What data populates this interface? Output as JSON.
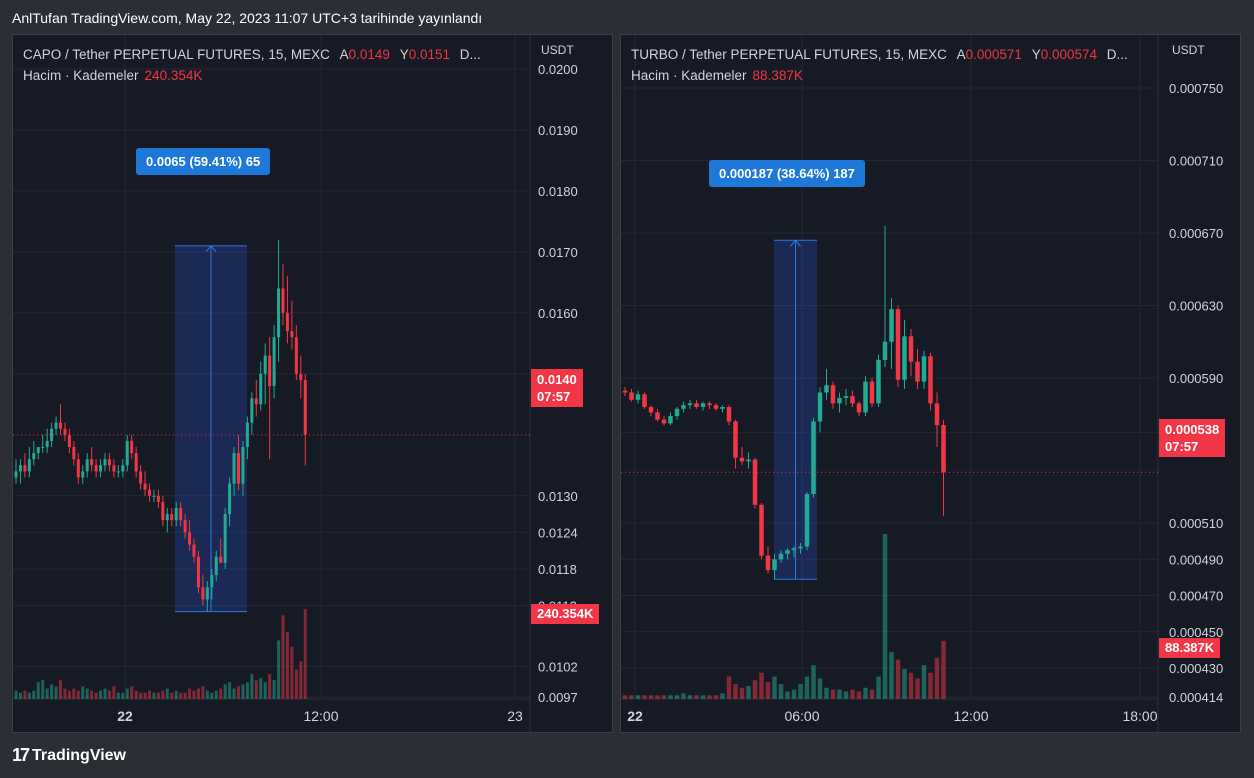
{
  "header": {
    "title": "AnlTufan TradingView.com, May 22, 2023 11:07 UTC+3 tarihinde yayınlandı"
  },
  "footer": {
    "brand": "TradingView",
    "logo": "tradingview-logo-icon"
  },
  "colors": {
    "up": "#22ab94",
    "down": "#f23645",
    "measure": "#1e78d7",
    "background": "#161a25"
  },
  "left": {
    "symbol": "CAPO / Tether PERPETUAL FUTURES, 15, MEXC",
    "open_label": "A",
    "open_value": "0.0149",
    "high_label": "Y",
    "high_value": "0.0151",
    "more": "D...",
    "volume_label": "Hacim · Kademeler",
    "volume_value": "240.354K",
    "currency": "USDT",
    "measure_text": "0.0065 (59.41%) 65",
    "last_price": "0.0140",
    "countdown": "07:57",
    "volume_tag": "240.354K",
    "price_ticks": [
      "0.0200",
      "0.0190",
      "0.0180",
      "0.0170",
      "0.0160",
      "0.0150",
      "0.0130",
      "0.0124",
      "0.0118",
      "0.0112",
      "0.0102",
      "0.0097"
    ],
    "time_ticks": [
      "22",
      "12:00",
      "23"
    ]
  },
  "right": {
    "symbol": "TURBO / Tether PERPETUAL FUTURES, 15, MEXC",
    "open_label": "A",
    "open_value": "0.000571",
    "high_label": "Y",
    "high_value": "0.000574",
    "more": "D...",
    "volume_label": "Hacim · Kademeler",
    "volume_value": "88.387K",
    "currency": "USDT",
    "measure_text": "0.000187 (38.64%) 187",
    "last_price": "0.000538",
    "countdown": "07:57",
    "volume_tag": "88.387K",
    "price_ticks": [
      "0.000750",
      "0.000710",
      "0.000670",
      "0.000630",
      "0.000590",
      "0.000560",
      "0.000510",
      "0.000490",
      "0.000470",
      "0.000450",
      "0.000430",
      "0.000414"
    ],
    "time_ticks": [
      "22",
      "06:00",
      "12:00",
      "18:00"
    ]
  },
  "chart_data": [
    {
      "type": "candlestick",
      "title": "CAPO / Tether PERPETUAL FUTURES, 15, MEXC",
      "ylabel": "USDT",
      "ylim": [
        0.0097,
        0.02
      ],
      "x_ticks": [
        "22",
        "12:00",
        "23"
      ],
      "candles": [
        [
          0.0133,
          0.0136,
          0.0132,
          0.0134
        ],
        [
          0.0134,
          0.0136,
          0.0132,
          0.0135
        ],
        [
          0.0135,
          0.0137,
          0.0133,
          0.0134
        ],
        [
          0.0134,
          0.0138,
          0.0133,
          0.0136
        ],
        [
          0.0136,
          0.0139,
          0.0135,
          0.0137
        ],
        [
          0.0137,
          0.0138,
          0.0136,
          0.0138
        ],
        [
          0.0138,
          0.014,
          0.0137,
          0.0138
        ],
        [
          0.0138,
          0.0141,
          0.0137,
          0.0139
        ],
        [
          0.0139,
          0.0142,
          0.0138,
          0.0141
        ],
        [
          0.0141,
          0.0143,
          0.014,
          0.0142
        ],
        [
          0.0142,
          0.0145,
          0.014,
          0.0141
        ],
        [
          0.0141,
          0.0142,
          0.0139,
          0.014
        ],
        [
          0.014,
          0.0141,
          0.0137,
          0.0138
        ],
        [
          0.0138,
          0.0139,
          0.0135,
          0.0136
        ],
        [
          0.0136,
          0.0137,
          0.0132,
          0.0133
        ],
        [
          0.0133,
          0.0135,
          0.0132,
          0.0134
        ],
        [
          0.0134,
          0.0137,
          0.0133,
          0.0136
        ],
        [
          0.0136,
          0.0138,
          0.0134,
          0.0135
        ],
        [
          0.0135,
          0.0136,
          0.0133,
          0.0134
        ],
        [
          0.0134,
          0.0136,
          0.0133,
          0.0135
        ],
        [
          0.0135,
          0.0137,
          0.0134,
          0.0136
        ],
        [
          0.0136,
          0.0137,
          0.0134,
          0.0135
        ],
        [
          0.0135,
          0.0136,
          0.0133,
          0.0134
        ],
        [
          0.0134,
          0.0135,
          0.0133,
          0.0134
        ],
        [
          0.0134,
          0.0136,
          0.0133,
          0.0135
        ],
        [
          0.0135,
          0.014,
          0.0134,
          0.0139
        ],
        [
          0.0139,
          0.014,
          0.0136,
          0.0137
        ],
        [
          0.0137,
          0.0138,
          0.0133,
          0.0134
        ],
        [
          0.0134,
          0.0135,
          0.0131,
          0.0132
        ],
        [
          0.0132,
          0.0134,
          0.013,
          0.0131
        ],
        [
          0.0131,
          0.0132,
          0.0129,
          0.013
        ],
        [
          0.013,
          0.0131,
          0.0129,
          0.013
        ],
        [
          0.013,
          0.0131,
          0.0128,
          0.0129
        ],
        [
          0.0129,
          0.013,
          0.0125,
          0.0126
        ],
        [
          0.0126,
          0.0128,
          0.0124,
          0.0127
        ],
        [
          0.0127,
          0.0128,
          0.0125,
          0.0126
        ],
        [
          0.0126,
          0.0129,
          0.0125,
          0.0128
        ],
        [
          0.0128,
          0.0129,
          0.0125,
          0.0126
        ],
        [
          0.0126,
          0.0127,
          0.0123,
          0.0124
        ],
        [
          0.0124,
          0.0126,
          0.0121,
          0.0122
        ],
        [
          0.0122,
          0.0123,
          0.0119,
          0.012
        ],
        [
          0.012,
          0.0121,
          0.0114,
          0.0115
        ],
        [
          0.0115,
          0.0117,
          0.0112,
          0.0113
        ],
        [
          0.0113,
          0.0116,
          0.0111,
          0.0115
        ],
        [
          0.0115,
          0.0118,
          0.0113,
          0.0117
        ],
        [
          0.0117,
          0.0121,
          0.0116,
          0.012
        ],
        [
          0.012,
          0.0123,
          0.0119,
          0.0119
        ],
        [
          0.0119,
          0.0128,
          0.0118,
          0.0127
        ],
        [
          0.0127,
          0.0133,
          0.0125,
          0.0132
        ],
        [
          0.0132,
          0.0138,
          0.013,
          0.0137
        ],
        [
          0.0137,
          0.014,
          0.0131,
          0.0132
        ],
        [
          0.0132,
          0.0139,
          0.013,
          0.0138
        ],
        [
          0.0138,
          0.0143,
          0.0136,
          0.0142
        ],
        [
          0.0142,
          0.0147,
          0.014,
          0.0146
        ],
        [
          0.0146,
          0.0149,
          0.0143,
          0.0145
        ],
        [
          0.0145,
          0.0152,
          0.0144,
          0.015
        ],
        [
          0.015,
          0.0155,
          0.0145,
          0.0153
        ],
        [
          0.0153,
          0.0156,
          0.0136,
          0.0148
        ],
        [
          0.0148,
          0.0158,
          0.0146,
          0.0156
        ],
        [
          0.0156,
          0.0172,
          0.0152,
          0.0164
        ],
        [
          0.0164,
          0.0168,
          0.0158,
          0.016
        ],
        [
          0.016,
          0.0166,
          0.0155,
          0.0157
        ],
        [
          0.0157,
          0.0162,
          0.0154,
          0.0156
        ],
        [
          0.0156,
          0.0158,
          0.0149,
          0.015
        ],
        [
          0.015,
          0.0153,
          0.0146,
          0.0149
        ],
        [
          0.0149,
          0.015,
          0.0135,
          0.014
        ]
      ],
      "volume": [
        4,
        3,
        4,
        3,
        4,
        8,
        9,
        5,
        7,
        6,
        9,
        5,
        4,
        5,
        4,
        6,
        5,
        4,
        3,
        4,
        5,
        4,
        6,
        3,
        3,
        5,
        6,
        4,
        3,
        3,
        4,
        3,
        3,
        4,
        5,
        3,
        4,
        3,
        3,
        5,
        4,
        5,
        6,
        4,
        3,
        4,
        5,
        7,
        8,
        5,
        6,
        7,
        8,
        12,
        9,
        10,
        8,
        12,
        9,
        28,
        40,
        32,
        25,
        14,
        18,
        43
      ]
    },
    {
      "type": "candlestick",
      "title": "TURBO / Tether PERPETUAL FUTURES, 15, MEXC",
      "ylabel": "USDT",
      "ylim": [
        0.000414,
        0.00075
      ],
      "x_ticks": [
        "22",
        "06:00",
        "12:00",
        "18:00"
      ],
      "candles": [
        [
          0.000583,
          0.000585,
          0.00058,
          0.000582
        ],
        [
          0.000582,
          0.000584,
          0.000577,
          0.000578
        ],
        [
          0.000578,
          0.000583,
          0.000576,
          0.000581
        ],
        [
          0.000581,
          0.000582,
          0.000573,
          0.000574
        ],
        [
          0.000574,
          0.000575,
          0.000569,
          0.000571
        ],
        [
          0.000571,
          0.000573,
          0.000566,
          0.000567
        ],
        [
          0.000567,
          0.000569,
          0.000564,
          0.000565
        ],
        [
          0.000565,
          0.000571,
          0.000564,
          0.000569
        ],
        [
          0.000569,
          0.000574,
          0.000567,
          0.000573
        ],
        [
          0.000573,
          0.000577,
          0.000571,
          0.000575
        ],
        [
          0.000575,
          0.000578,
          0.000573,
          0.000576
        ],
        [
          0.000576,
          0.000578,
          0.000573,
          0.000574
        ],
        [
          0.000574,
          0.000577,
          0.000572,
          0.000576
        ],
        [
          0.000576,
          0.000577,
          0.000573,
          0.000575
        ],
        [
          0.000575,
          0.000576,
          0.000572,
          0.000573
        ],
        [
          0.000573,
          0.000575,
          0.000571,
          0.000574
        ],
        [
          0.000574,
          0.000575,
          0.000564,
          0.000566
        ],
        [
          0.000566,
          0.000567,
          0.00054,
          0.000546
        ],
        [
          0.000546,
          0.000552,
          0.000542,
          0.000544
        ],
        [
          0.000544,
          0.000549,
          0.00054,
          0.000545
        ],
        [
          0.000545,
          0.000546,
          0.000518,
          0.00052
        ],
        [
          0.00052,
          0.000521,
          0.00049,
          0.000492
        ],
        [
          0.000492,
          0.000497,
          0.000482,
          0.000484
        ],
        [
          0.000484,
          0.000493,
          0.000479,
          0.00049
        ],
        [
          0.00049,
          0.000495,
          0.000488,
          0.000493
        ],
        [
          0.000493,
          0.000496,
          0.00049,
          0.000495
        ],
        [
          0.000495,
          0.000497,
          0.000491,
          0.000496
        ],
        [
          0.000496,
          0.000499,
          0.000493,
          0.000497
        ],
        [
          0.000497,
          0.000527,
          0.000495,
          0.000526
        ],
        [
          0.000526,
          0.000568,
          0.000524,
          0.000566
        ],
        [
          0.000566,
          0.000585,
          0.00056,
          0.000582
        ],
        [
          0.000582,
          0.000595,
          0.000578,
          0.000586
        ],
        [
          0.000586,
          0.000588,
          0.000573,
          0.000576
        ],
        [
          0.000576,
          0.000582,
          0.000571,
          0.000579
        ],
        [
          0.000579,
          0.000584,
          0.000575,
          0.00058
        ],
        [
          0.00058,
          0.000583,
          0.000574,
          0.000576
        ],
        [
          0.000576,
          0.000577,
          0.000569,
          0.000571
        ],
        [
          0.000571,
          0.000591,
          0.000569,
          0.000588
        ],
        [
          0.000588,
          0.00059,
          0.000574,
          0.000576
        ],
        [
          0.000576,
          0.000603,
          0.000574,
          0.0006
        ],
        [
          0.0006,
          0.000674,
          0.000596,
          0.00061
        ],
        [
          0.00061,
          0.000634,
          0.000595,
          0.000628
        ],
        [
          0.000628,
          0.00063,
          0.000585,
          0.000589
        ],
        [
          0.000589,
          0.000622,
          0.000584,
          0.000613
        ],
        [
          0.000613,
          0.000617,
          0.000591,
          0.000599
        ],
        [
          0.000599,
          0.000606,
          0.000584,
          0.000588
        ],
        [
          0.000588,
          0.000605,
          0.000584,
          0.000602
        ],
        [
          0.000602,
          0.000604,
          0.000572,
          0.000576
        ],
        [
          0.000576,
          0.000582,
          0.000552,
          0.000564
        ],
        [
          0.000564,
          0.000567,
          0.000514,
          0.000538
        ]
      ],
      "volume": [
        2,
        2,
        2,
        2,
        2,
        2,
        2,
        2,
        2,
        3,
        2,
        2,
        2,
        2,
        2,
        3,
        12,
        8,
        6,
        7,
        10,
        14,
        9,
        12,
        8,
        4,
        5,
        8,
        12,
        18,
        11,
        6,
        5,
        5,
        4,
        5,
        4,
        6,
        5,
        12,
        88,
        25,
        21,
        16,
        14,
        11,
        18,
        14,
        22,
        31
      ]
    }
  ]
}
